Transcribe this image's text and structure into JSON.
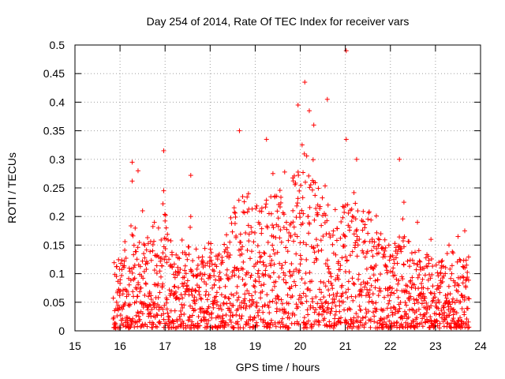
{
  "chart_data": {
    "type": "scatter",
    "title": "Day 254 of 2014, Rate Of TEC Index for receiver vars",
    "xlabel": "GPS time / hours",
    "ylabel": "ROTI / TECUs",
    "xlim": [
      15,
      24
    ],
    "ylim": [
      0,
      0.5
    ],
    "x_ticks": [
      15,
      16,
      17,
      18,
      19,
      20,
      21,
      22,
      23,
      24
    ],
    "y_ticks": [
      0,
      0.05,
      0.1,
      0.15,
      0.2,
      0.25,
      0.3,
      0.35,
      0.4,
      0.45,
      0.5
    ],
    "x_tick_labels": [
      "15",
      "16",
      "17",
      "18",
      "19",
      "20",
      "21",
      "22",
      "23",
      "24"
    ],
    "y_tick_labels": [
      "0",
      "0.05",
      "0.1",
      "0.15",
      "0.2",
      "0.25",
      "0.3",
      "0.35",
      "0.4",
      "0.45",
      "0.5"
    ],
    "grid": true,
    "marker": "+",
    "marker_color": "#ff0000",
    "series": [
      {
        "name": "ROTI",
        "data_range": {
          "x_start": 15.85,
          "x_end": 23.75,
          "y_min": 0.005,
          "y_max": 0.49
        },
        "notable_points": [
          {
            "x": 21.02,
            "y": 0.49
          },
          {
            "x": 20.1,
            "y": 0.435
          },
          {
            "x": 20.6,
            "y": 0.405
          },
          {
            "x": 19.95,
            "y": 0.395
          },
          {
            "x": 20.2,
            "y": 0.385
          },
          {
            "x": 20.3,
            "y": 0.36
          },
          {
            "x": 18.65,
            "y": 0.35
          },
          {
            "x": 21.02,
            "y": 0.335
          },
          {
            "x": 19.25,
            "y": 0.335
          },
          {
            "x": 16.97,
            "y": 0.315
          },
          {
            "x": 21.25,
            "y": 0.3
          },
          {
            "x": 22.2,
            "y": 0.3
          },
          {
            "x": 16.27,
            "y": 0.295
          },
          {
            "x": 16.4,
            "y": 0.28
          },
          {
            "x": 17.57,
            "y": 0.272
          },
          {
            "x": 16.27,
            "y": 0.262
          },
          {
            "x": 16.97,
            "y": 0.245
          },
          {
            "x": 18.85,
            "y": 0.24
          },
          {
            "x": 22.3,
            "y": 0.225
          },
          {
            "x": 17.57,
            "y": 0.2
          },
          {
            "x": 16.5,
            "y": 0.21
          },
          {
            "x": 22.6,
            "y": 0.19
          },
          {
            "x": 23.65,
            "y": 0.175
          },
          {
            "x": 23.5,
            "y": 0.165
          },
          {
            "x": 23.3,
            "y": 0.15
          },
          {
            "x": 22.9,
            "y": 0.16
          }
        ]
      }
    ]
  }
}
